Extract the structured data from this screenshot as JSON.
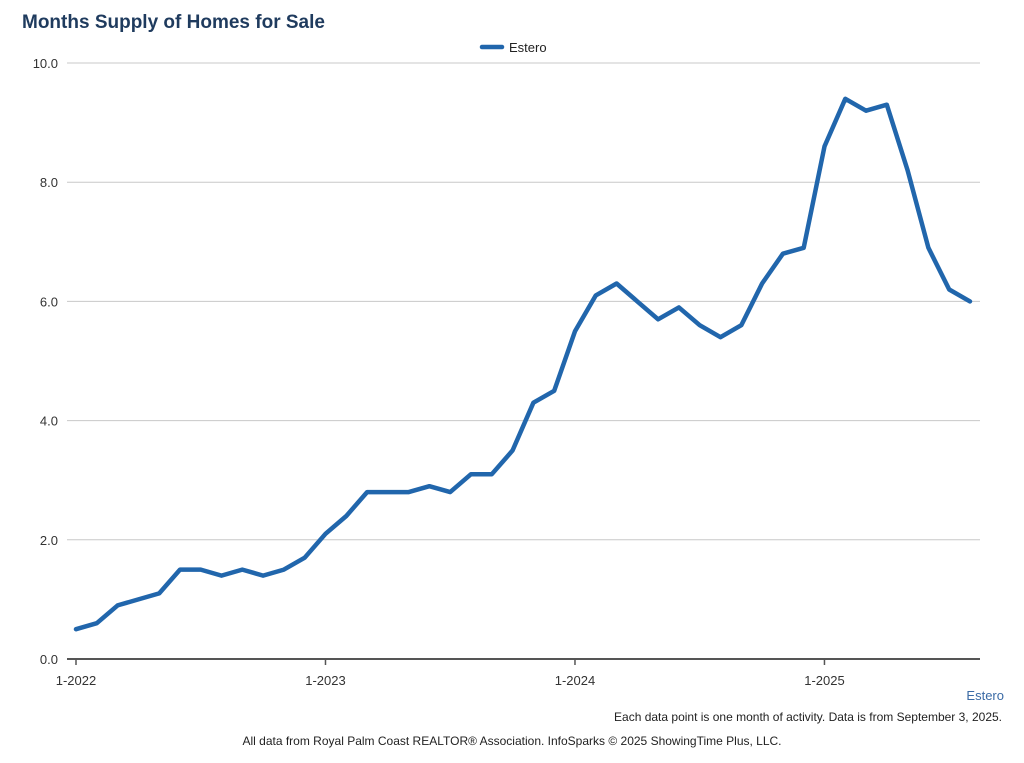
{
  "chart_data": {
    "type": "line",
    "title": "Months Supply of Homes for Sale",
    "xlabel": "",
    "ylabel": "",
    "ylim": [
      0,
      10
    ],
    "yticks": [
      "0.0",
      "2.0",
      "4.0",
      "6.0",
      "8.0",
      "10.0"
    ],
    "ytick_values": [
      0,
      2,
      4,
      6,
      8,
      10
    ],
    "xticks": [
      "1-2022",
      "1-2023",
      "1-2024",
      "1-2025"
    ],
    "xtick_indices": [
      0,
      12,
      24,
      36
    ],
    "legend": "top-center",
    "grid": true,
    "series": [
      {
        "name": "Estero",
        "color": "#2166ac",
        "x": [
          "1-2022",
          "2-2022",
          "3-2022",
          "4-2022",
          "5-2022",
          "6-2022",
          "7-2022",
          "8-2022",
          "9-2022",
          "10-2022",
          "11-2022",
          "12-2022",
          "1-2023",
          "2-2023",
          "3-2023",
          "4-2023",
          "5-2023",
          "6-2023",
          "7-2023",
          "8-2023",
          "9-2023",
          "10-2023",
          "11-2023",
          "12-2023",
          "1-2024",
          "2-2024",
          "3-2024",
          "4-2024",
          "5-2024",
          "6-2024",
          "7-2024",
          "8-2024",
          "9-2024",
          "10-2024",
          "11-2024",
          "12-2024",
          "1-2025",
          "2-2025",
          "3-2025",
          "4-2025",
          "5-2025",
          "6-2025",
          "7-2025",
          "8-2025"
        ],
        "values": [
          0.5,
          0.6,
          0.9,
          1.0,
          1.1,
          1.5,
          1.5,
          1.4,
          1.5,
          1.4,
          1.5,
          1.7,
          2.1,
          2.4,
          2.8,
          2.8,
          2.8,
          2.9,
          2.8,
          3.1,
          3.1,
          3.5,
          4.3,
          4.5,
          5.5,
          6.1,
          6.3,
          6.0,
          5.7,
          5.9,
          5.6,
          5.4,
          5.6,
          6.3,
          6.8,
          6.9,
          8.6,
          9.4,
          9.2,
          9.3,
          8.2,
          6.9,
          6.2,
          6.0
        ]
      }
    ]
  },
  "series_end_label": "Estero",
  "footnote": "Each data point is one month of activity. Data is from September 3, 2025.",
  "source": "All data from Royal Palm Coast REALTOR® Association. InfoSparks © 2025 ShowingTime Plus, LLC."
}
